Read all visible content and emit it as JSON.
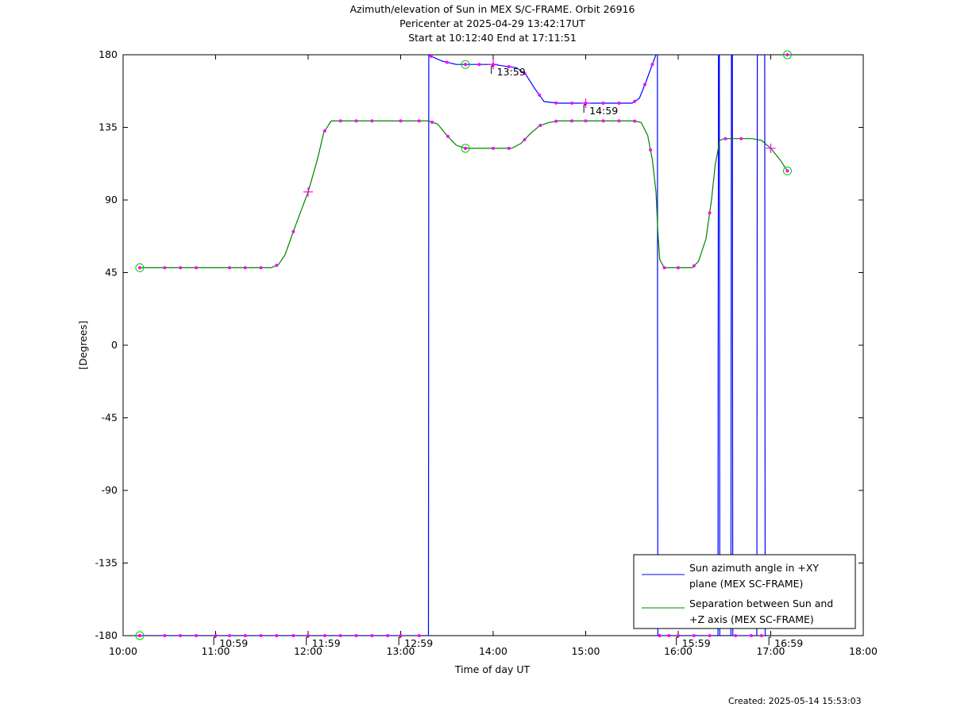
{
  "title": {
    "line1": "Azimuth/elevation of Sun in MEX S/C-FRAME.  Orbit 26916",
    "line2": "Pericenter at 2025-04-29 13:42:17UT",
    "line3": "Start at 10:12:40 End at 17:11:51"
  },
  "created": "Created: 2025-05-14 15:53:03",
  "chart_data": {
    "type": "line",
    "xlabel": "Time of day UT",
    "ylabel": "[Degrees]",
    "xlim": [
      10.0,
      18.0
    ],
    "ylim": [
      -180,
      180
    ],
    "xticks": [
      10,
      11,
      12,
      13,
      14,
      15,
      16,
      17,
      18
    ],
    "xtick_labels": [
      "10:00",
      "11:00",
      "12:00",
      "13:00",
      "14:00",
      "15:00",
      "16:00",
      "17:00",
      "18:00"
    ],
    "yticks": [
      180,
      135,
      90,
      45,
      0,
      -45,
      -90,
      -135,
      -180
    ],
    "ytick_labels": [
      "180",
      "135",
      "90",
      "45",
      "0",
      "-45",
      "-90",
      "-135",
      "-180"
    ],
    "grid": false,
    "legend_position": "bottom-right",
    "colors": {
      "azimuth": "#0000ff",
      "separation": "#008000",
      "marker": "#ff00ff",
      "circle": "#00cc00"
    },
    "series": [
      {
        "name": "Sun azimuth angle in +XY plane (MEX SC-FRAME)",
        "legend_lines": [
          "Sun azimuth angle in +XY",
          "plane (MEX SC-FRAME)"
        ],
        "x": [
          10.18,
          11.0,
          12.0,
          13.0,
          13.3,
          13.302,
          13.304,
          13.33,
          13.45,
          13.6,
          13.7,
          14.0,
          14.25,
          14.35,
          14.45,
          14.55,
          14.7,
          15.0,
          15.3,
          15.5,
          15.58,
          15.65,
          15.72,
          15.76,
          15.775,
          15.777,
          15.78,
          16.0,
          16.2,
          16.43,
          16.432,
          16.435,
          16.445,
          16.447,
          16.45,
          16.57,
          16.572,
          16.575,
          16.585,
          16.587,
          16.59,
          16.8,
          16.85,
          16.852,
          16.855,
          16.935,
          16.937,
          16.94,
          17.0
        ],
        "y": [
          -180,
          -180,
          -180,
          -180,
          -180,
          0,
          180,
          179,
          176,
          174,
          174,
          174,
          172,
          168,
          159,
          151,
          150,
          150,
          150,
          150,
          153,
          163,
          174,
          180,
          180,
          0,
          -180,
          -180,
          -180,
          -180,
          0,
          180,
          180,
          0,
          -180,
          -180,
          0,
          180,
          180,
          0,
          -180,
          -180,
          -180,
          0,
          180,
          180,
          0,
          -180,
          -180
        ]
      },
      {
        "name": "Separation between Sun and +Z axis (MEX SC-FRAME)",
        "legend_lines": [
          "Separation between Sun and",
          "+Z axis (MEX SC-FRAME)"
        ],
        "x": [
          10.18,
          11.0,
          11.6,
          11.68,
          11.75,
          11.85,
          12.0,
          12.1,
          12.17,
          12.25,
          12.5,
          13.0,
          13.3,
          13.4,
          13.5,
          13.6,
          13.7,
          14.0,
          14.2,
          14.3,
          14.4,
          14.5,
          14.6,
          14.7,
          15.0,
          15.4,
          15.52,
          15.6,
          15.67,
          15.72,
          15.76,
          15.78,
          15.8,
          15.85,
          16.0,
          16.15,
          16.22,
          16.3,
          16.36,
          16.4,
          16.45,
          16.5,
          16.8,
          16.9,
          17.0,
          17.1,
          17.18
        ],
        "y": [
          48,
          48,
          48,
          50,
          56,
          72,
          95,
          115,
          132,
          139,
          139,
          139,
          139,
          137,
          130,
          124,
          122,
          122,
          122,
          125,
          131,
          136,
          138,
          139,
          139,
          139,
          139,
          138,
          130,
          115,
          95,
          70,
          53,
          48,
          48,
          48,
          52,
          66,
          90,
          112,
          127,
          128,
          128,
          127,
          122,
          115,
          108
        ]
      }
    ],
    "markers": {
      "separation_dots_x": [
        10.18,
        10.45,
        10.62,
        10.79,
        11.15,
        11.32,
        11.49,
        11.66,
        11.84,
        12.18,
        12.35,
        12.52,
        12.69,
        13.0,
        13.2,
        13.34,
        13.51,
        13.7,
        14.0,
        14.17,
        14.34,
        14.51,
        14.68,
        14.85,
        15.0,
        15.19,
        15.36,
        15.53,
        15.7,
        15.85,
        16.0,
        16.17,
        16.34,
        16.51,
        16.68,
        17.18
      ],
      "azimuth_top_dots_x": [
        13.33,
        13.5,
        13.7,
        13.85,
        14.0,
        14.17,
        14.34,
        14.5,
        14.68,
        14.85,
        15.0,
        15.19,
        15.36,
        15.53,
        15.64,
        15.72
      ],
      "azimuth_bottom_dots_x": [
        10.18,
        10.45,
        10.62,
        10.79,
        11.0,
        11.15,
        11.32,
        11.49,
        11.66,
        11.84,
        12.0,
        12.18,
        12.35,
        12.52,
        12.69,
        12.86,
        13.0,
        13.2,
        15.8,
        15.9,
        16.0,
        16.17,
        16.34,
        16.62,
        16.79,
        16.9
      ],
      "circles": [
        {
          "series": "separation",
          "x": 10.18,
          "y": 48
        },
        {
          "series": "separation",
          "x": 13.7,
          "y": 122
        },
        {
          "series": "separation",
          "x": 17.18,
          "y": 108
        },
        {
          "series": "azimuth",
          "x": 10.18,
          "y": -180
        },
        {
          "series": "azimuth",
          "x": 13.7,
          "y": 174
        },
        {
          "series": "azimuth",
          "x": 17.18,
          "y": 180
        }
      ],
      "crosses": [
        {
          "x": 12.0,
          "y": 95
        },
        {
          "x": 17.0,
          "y": 122
        },
        {
          "x": 14.0,
          "y": 174
        },
        {
          "x": 15.0,
          "y": 150
        }
      ],
      "time_labels": [
        {
          "x": 10.98,
          "y": -180,
          "text": "10:59"
        },
        {
          "x": 11.98,
          "y": -180,
          "text": "11:59"
        },
        {
          "x": 12.98,
          "y": -180,
          "text": "12:59"
        },
        {
          "x": 13.98,
          "y": 174,
          "text": "13:59"
        },
        {
          "x": 14.98,
          "y": 150,
          "text": "14:59"
        },
        {
          "x": 15.98,
          "y": -180,
          "text": "15:59"
        },
        {
          "x": 16.98,
          "y": -180,
          "text": "16:59"
        }
      ]
    }
  }
}
